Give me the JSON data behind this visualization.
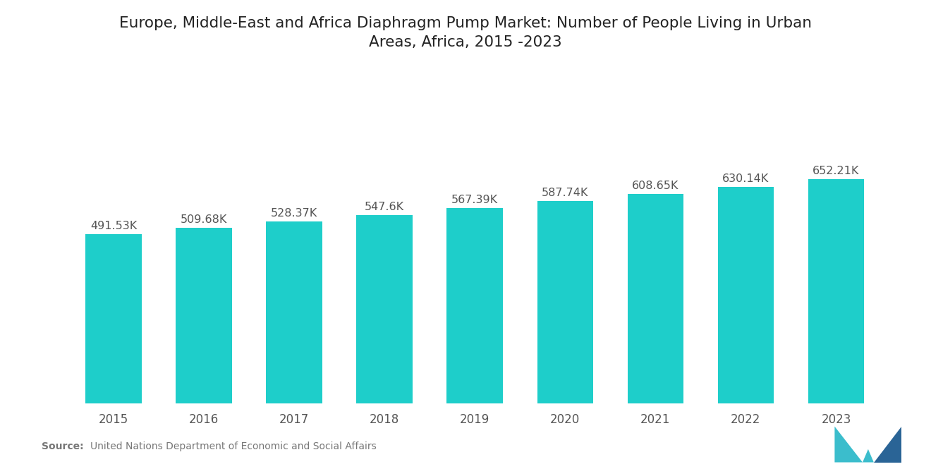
{
  "title": "Europe, Middle-East and Africa Diaphragm Pump Market: Number of People Living in Urban\nAreas, Africa, 2015 -2023",
  "years": [
    2015,
    2016,
    2017,
    2018,
    2019,
    2020,
    2021,
    2022,
    2023
  ],
  "values": [
    491.53,
    509.68,
    528.37,
    547.6,
    567.39,
    587.74,
    608.65,
    630.14,
    652.21
  ],
  "labels": [
    "491.53K",
    "509.68K",
    "528.37K",
    "547.6K",
    "567.39K",
    "587.74K",
    "608.65K",
    "630.14K",
    "652.21K"
  ],
  "bar_color": "#1ECECA",
  "background_color": "#ffffff",
  "title_fontsize": 15.5,
  "label_fontsize": 11.5,
  "tick_fontsize": 12,
  "source_bold": "Source:",
  "source_text": "  United Nations Department of Economic and Social Affairs",
  "ylim": [
    0,
    900
  ]
}
